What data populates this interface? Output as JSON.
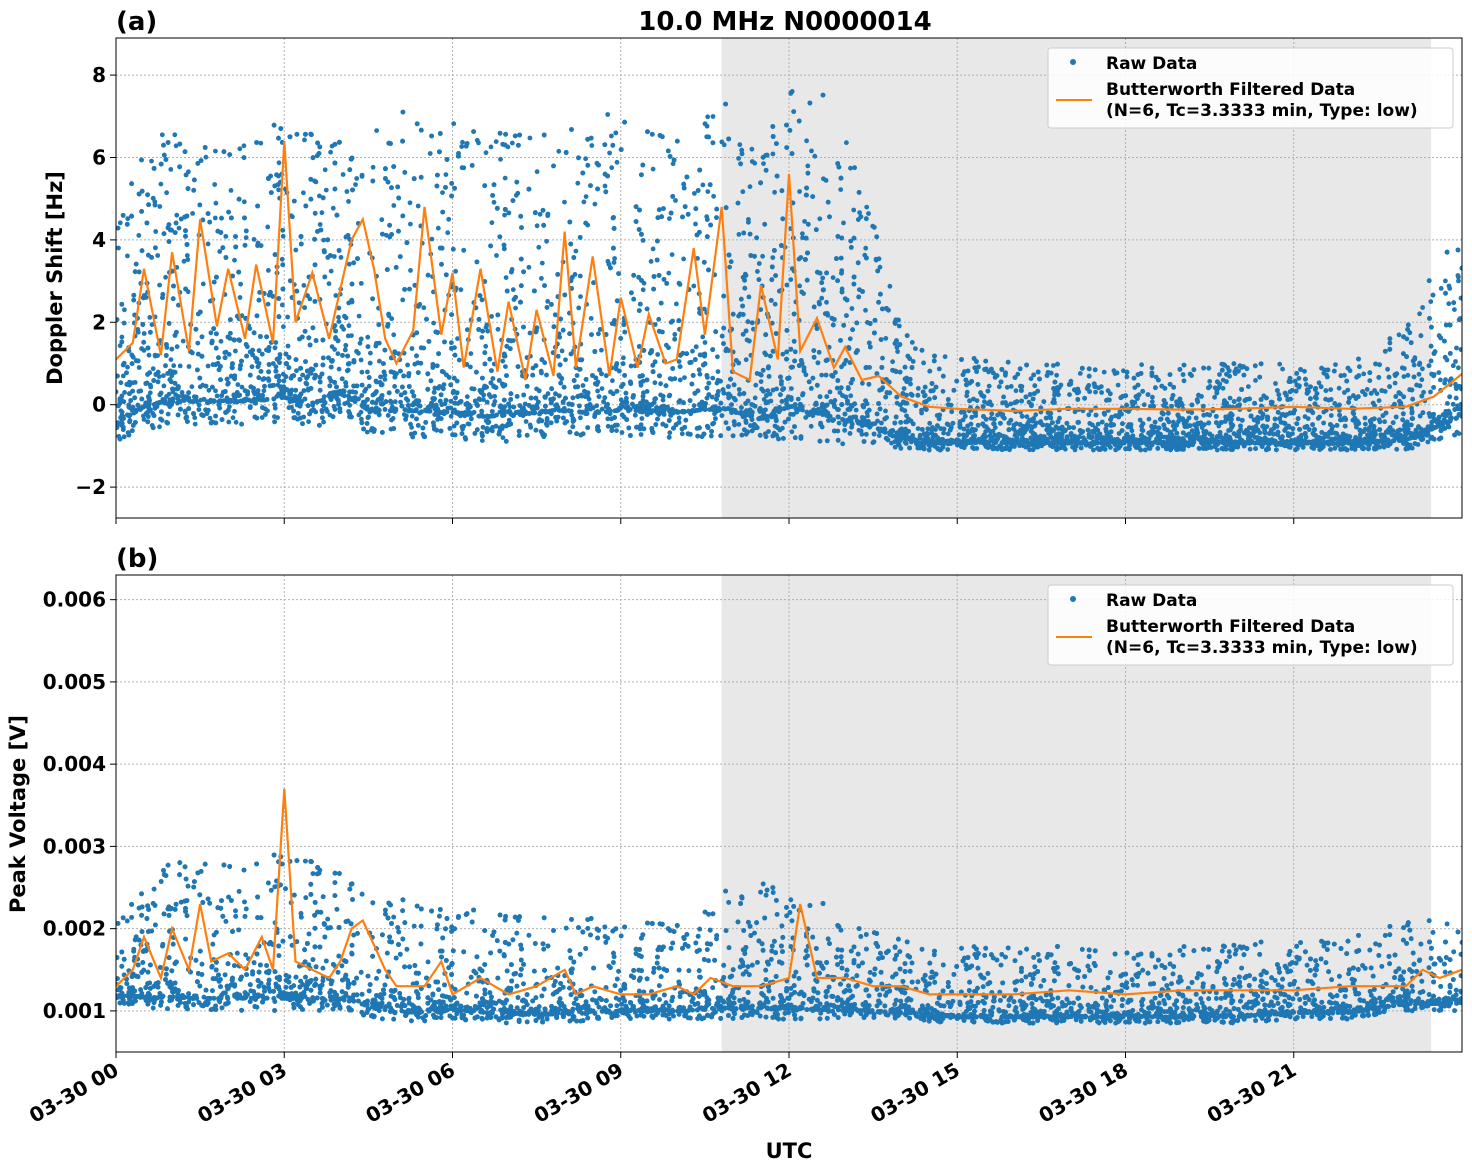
{
  "figure": {
    "title": "10.0 MHz N0000014",
    "xlabel": "UTC",
    "shaded_interval_hours": [
      10.8,
      23.45
    ],
    "x_ticks": [
      {
        "h": 0,
        "label": "03-30 00"
      },
      {
        "h": 3,
        "label": "03-30 03"
      },
      {
        "h": 6,
        "label": "03-30 06"
      },
      {
        "h": 9,
        "label": "03-30 09"
      },
      {
        "h": 12,
        "label": "03-30 12"
      },
      {
        "h": 15,
        "label": "03-30 15"
      },
      {
        "h": 18,
        "label": "03-30 18"
      },
      {
        "h": 21,
        "label": "03-30 21"
      }
    ],
    "colors": {
      "raw": "#1f77b4",
      "filtered": "#ff7f0e",
      "shade": "#e8e8e8",
      "grid": "#b0b0b0"
    }
  },
  "legend": {
    "raw_label": "Raw Data",
    "filt_line1": "Butterworth Filtered Data",
    "filt_line2": "(N=6, Tc=3.3333 min, Type: low)"
  },
  "chart_data": [
    {
      "panel": "(a)",
      "type": "scatter",
      "ylabel": "Doppler Shift [Hz]",
      "xlim_hours": [
        0,
        24
      ],
      "ylim": [
        -2.75,
        8.9
      ],
      "y_ticks": [
        -2,
        0,
        2,
        4,
        6,
        8
      ],
      "y_tick_labels": [
        "−2",
        "0",
        "2",
        "4",
        "6",
        "8"
      ],
      "series": [
        {
          "name": "Raw Data",
          "kind": "points",
          "envelope_hours": [
            0,
            0.5,
            1,
            1.5,
            2,
            2.5,
            3,
            3.5,
            4,
            4.5,
            5,
            5.5,
            6,
            6.5,
            7,
            7.5,
            8,
            8.5,
            9,
            9.5,
            10,
            10.5,
            11,
            11.5,
            12,
            12.5,
            13,
            13.5,
            14,
            15,
            16,
            17,
            18,
            19,
            20,
            21,
            22,
            23,
            24
          ],
          "envelope_low": [
            -0.9,
            -0.6,
            -0.5,
            -0.5,
            -0.5,
            -0.5,
            -0.4,
            -0.6,
            -0.3,
            -0.7,
            -0.8,
            -0.8,
            -0.8,
            -0.9,
            -0.9,
            -0.8,
            -0.8,
            -0.8,
            -0.8,
            -0.8,
            -0.8,
            -0.8,
            -0.8,
            -0.9,
            -0.8,
            -0.9,
            -1.0,
            -1.0,
            -1.1,
            -1.1,
            -1.1,
            -1.1,
            -1.1,
            -1.1,
            -1.1,
            -1.1,
            -1.1,
            -1.1,
            -0.7
          ],
          "envelope_high": [
            4.5,
            6.3,
            6.7,
            6.7,
            6.6,
            6.8,
            6.8,
            6.7,
            6.9,
            6.4,
            7.3,
            7.3,
            6.9,
            6.8,
            6.9,
            6.8,
            7.3,
            6.6,
            7.5,
            6.8,
            6.8,
            7.7,
            7.7,
            5.8,
            8.4,
            7.8,
            6.8,
            4.9,
            1.9,
            1.2,
            1.1,
            1.0,
            1.0,
            1.0,
            1.0,
            1.0,
            1.0,
            1.9,
            4.6
          ]
        },
        {
          "name": "Butterworth Filtered Data (N=6, Tc=3.3333 min, Type: low)",
          "kind": "line",
          "x_hours": [
            0,
            0.3,
            0.5,
            0.8,
            1,
            1.3,
            1.5,
            1.8,
            2,
            2.3,
            2.5,
            2.8,
            3,
            3.2,
            3.5,
            3.8,
            4,
            4.2,
            4.4,
            4.6,
            4.8,
            5,
            5.3,
            5.5,
            5.8,
            6,
            6.2,
            6.5,
            6.8,
            7,
            7.3,
            7.5,
            7.8,
            8,
            8.2,
            8.5,
            8.8,
            9,
            9.3,
            9.5,
            9.8,
            10,
            10.3,
            10.5,
            10.8,
            11,
            11.3,
            11.5,
            11.8,
            12,
            12.2,
            12.5,
            12.8,
            13,
            13.3,
            13.6,
            14,
            14.5,
            15,
            16,
            17,
            18,
            19,
            20,
            21,
            22,
            23,
            23.5,
            24
          ],
          "y": [
            1.1,
            1.5,
            3.3,
            1.2,
            3.7,
            1.3,
            4.5,
            1.9,
            3.3,
            1.6,
            3.4,
            1.5,
            6.4,
            2.0,
            3.2,
            1.6,
            2.8,
            4.0,
            4.5,
            3.3,
            1.6,
            1.0,
            1.8,
            4.8,
            1.7,
            3.2,
            0.9,
            3.3,
            0.8,
            2.5,
            0.6,
            2.3,
            0.7,
            4.2,
            0.9,
            3.6,
            0.7,
            2.6,
            0.9,
            2.2,
            1.0,
            1.1,
            3.8,
            1.7,
            4.8,
            0.8,
            0.6,
            2.9,
            1.1,
            5.6,
            1.3,
            2.1,
            0.9,
            1.4,
            0.6,
            0.7,
            0.2,
            -0.05,
            -0.1,
            -0.15,
            -0.1,
            -0.1,
            -0.12,
            -0.1,
            -0.05,
            -0.1,
            -0.05,
            0.2,
            0.75
          ]
        }
      ]
    },
    {
      "panel": "(b)",
      "type": "scatter",
      "ylabel": "Peak Voltage [V]",
      "xlim_hours": [
        0,
        24
      ],
      "ylim": [
        0.0005,
        0.0063
      ],
      "y_ticks": [
        0.001,
        0.002,
        0.003,
        0.004,
        0.005,
        0.006
      ],
      "y_tick_labels": [
        "0.001",
        "0.002",
        "0.003",
        "0.004",
        "0.005",
        "0.006"
      ],
      "series": [
        {
          "name": "Raw Data",
          "kind": "points",
          "envelope_hours": [
            0,
            1,
            2,
            3,
            4,
            5,
            6,
            7,
            8,
            9,
            10,
            11,
            12,
            13,
            14,
            15,
            16,
            17,
            18,
            19,
            20,
            21,
            22,
            23,
            24
          ],
          "envelope_low": [
            0.0011,
            0.001,
            0.001,
            0.001,
            0.001,
            0.00085,
            0.0009,
            0.00085,
            0.00085,
            0.0009,
            0.0009,
            0.0009,
            0.0009,
            0.0009,
            0.0009,
            0.00085,
            0.00085,
            0.00085,
            0.00085,
            0.00085,
            0.00085,
            0.0009,
            0.0009,
            0.001,
            0.001
          ],
          "envelope_high": [
            0.0021,
            0.0029,
            0.0029,
            0.0029,
            0.0028,
            0.0024,
            0.0023,
            0.0022,
            0.0022,
            0.0021,
            0.0021,
            0.0026,
            0.0025,
            0.0022,
            0.0019,
            0.0018,
            0.0018,
            0.0018,
            0.0018,
            0.0018,
            0.0018,
            0.0019,
            0.0019,
            0.0021,
            0.0021
          ]
        },
        {
          "name": "Butterworth Filtered Data (N=6, Tc=3.3333 min, Type: low)",
          "kind": "line",
          "x_hours": [
            0,
            0.3,
            0.5,
            0.8,
            1,
            1.3,
            1.5,
            1.7,
            2,
            2.3,
            2.6,
            2.8,
            3,
            3.2,
            3.5,
            3.8,
            4,
            4.2,
            4.4,
            4.6,
            4.8,
            5,
            5.5,
            5.8,
            6,
            6.5,
            7,
            7.5,
            8,
            8.2,
            8.5,
            9,
            9.5,
            10,
            10.3,
            10.6,
            11,
            11.5,
            12,
            12.2,
            12.5,
            13,
            13.5,
            14,
            14.5,
            15,
            16,
            17,
            18,
            19,
            20,
            21,
            22,
            23,
            23.3,
            23.6,
            24
          ],
          "y": [
            0.0013,
            0.0015,
            0.0019,
            0.0014,
            0.002,
            0.0015,
            0.0023,
            0.0016,
            0.0017,
            0.0015,
            0.0019,
            0.0015,
            0.0037,
            0.0016,
            0.0015,
            0.0014,
            0.0016,
            0.002,
            0.0021,
            0.0018,
            0.0015,
            0.0013,
            0.0013,
            0.0016,
            0.0012,
            0.0014,
            0.0012,
            0.0013,
            0.0015,
            0.0012,
            0.0013,
            0.0012,
            0.0012,
            0.0013,
            0.0012,
            0.0014,
            0.0013,
            0.0013,
            0.0014,
            0.0023,
            0.0014,
            0.0014,
            0.0013,
            0.0013,
            0.0012,
            0.0012,
            0.0012,
            0.00125,
            0.0012,
            0.00125,
            0.00125,
            0.00125,
            0.0013,
            0.0013,
            0.0015,
            0.0014,
            0.0015
          ]
        }
      ]
    }
  ]
}
